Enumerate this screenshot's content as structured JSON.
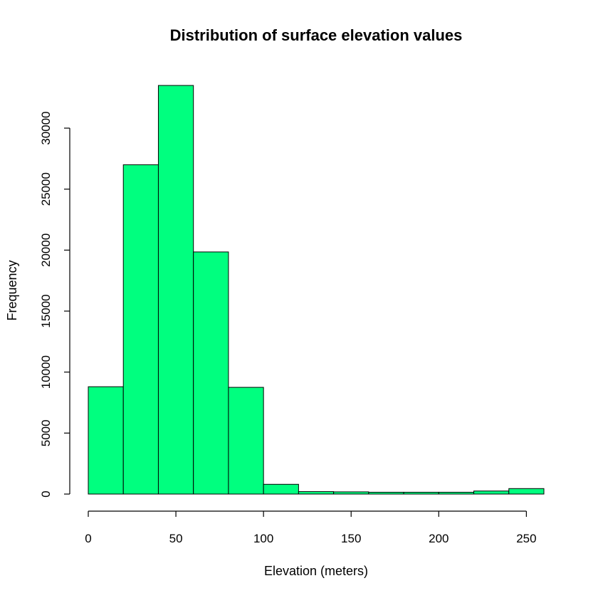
{
  "chart_data": {
    "type": "bar",
    "title": "Distribution of surface elevation values",
    "xlabel": "Elevation (meters)",
    "ylabel": "Frequency",
    "bin_edges": [
      0,
      20,
      40,
      60,
      80,
      100,
      120,
      140,
      160,
      180,
      200,
      220,
      240,
      260
    ],
    "values": [
      8800,
      27000,
      33500,
      19850,
      8750,
      800,
      200,
      180,
      150,
      150,
      150,
      250,
      450
    ],
    "xlim": [
      0,
      260
    ],
    "ylim": [
      0,
      30000
    ],
    "x_ticks": [
      0,
      50,
      100,
      150,
      200,
      250
    ],
    "y_ticks": [
      0,
      5000,
      10000,
      15000,
      20000,
      25000,
      30000
    ],
    "bar_color": "#00FF7F",
    "grid": false,
    "legend": "none"
  }
}
